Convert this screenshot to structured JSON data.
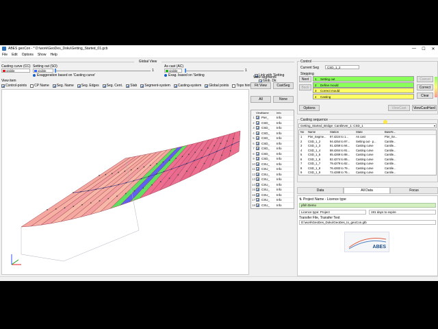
{
  "window": {
    "title": "ABES geoCon - * D:\\work\\GeoDes_Doku\\Getting_Started_01.gcb",
    "minimize": "—",
    "maximize": "☐",
    "close": "✕"
  },
  "menu": [
    "File",
    "Edit",
    "Options",
    "Show",
    "Help"
  ],
  "global_view": {
    "title": "Global View",
    "casting_curve_label": "Casting curve (CC)",
    "casting_curve_value": "visible",
    "setting_out_label": "Setting out (SO)",
    "setting_out_value": "visible",
    "exaggeration_label": "Exaggeration based on 'Casting curve'",
    "as_cast_label": "As cast (AC)",
    "as_cast_value": "visible",
    "exag_setting_label": "Exag. based on 'Setting",
    "link_label": "Link with 'Setting",
    "slider1_end": "1",
    "slider2_end": "1",
    "glob_dir_label": "Glob. Dir.",
    "view_item_title": "View item",
    "view_items": [
      "Control-points",
      "CP Name",
      "Seg. Name",
      "Seg. Edges",
      "Seg. Cent.",
      "Slab",
      "Segment-system",
      "Casting-system",
      "Global points",
      "Topo hint"
    ],
    "colors": {
      "casting_curve": "#e02020",
      "setting_out": "#3060ff",
      "as_cast": "#20b020"
    }
  },
  "view_segments": {
    "title": "View segments",
    "fit_view": "Fit View",
    "cast_seg": "CastSeg",
    "all": "All",
    "none": "None",
    "columns": [
      "View",
      "Name",
      "Info"
    ],
    "rows": [
      {
        "num": "1",
        "name": "Pier_",
        "info": "Info"
      },
      {
        "num": "2",
        "name": "CSD_",
        "info": "Info"
      },
      {
        "num": "3",
        "name": "CSD_",
        "info": "Info"
      },
      {
        "num": "4",
        "name": "CSD_",
        "info": "Info"
      },
      {
        "num": "5",
        "name": "CSD_",
        "info": "Info"
      },
      {
        "num": "6",
        "name": "CSD_",
        "info": "Info"
      },
      {
        "num": "7",
        "name": "CSD_",
        "info": "Info"
      },
      {
        "num": "8",
        "name": "CSD_",
        "info": "Info"
      },
      {
        "num": "9",
        "name": "CSD_",
        "info": "Info"
      },
      {
        "num": "10",
        "name": "CSU_",
        "info": "Info"
      },
      {
        "num": "11",
        "name": "CSU_",
        "info": "Info"
      },
      {
        "num": "12",
        "name": "CSU_",
        "info": "Info"
      },
      {
        "num": "13",
        "name": "CSU_",
        "info": "Info"
      },
      {
        "num": "14",
        "name": "CSU_",
        "info": "Info"
      },
      {
        "num": "15",
        "name": "CSU_",
        "info": "Info"
      },
      {
        "num": "16",
        "name": "CSU_",
        "info": "Info"
      },
      {
        "num": "17",
        "name": "CSU_",
        "info": "Info"
      },
      {
        "num": "18",
        "name": "CSU_",
        "info": "Info"
      }
    ]
  },
  "control": {
    "title": "Control",
    "current_seg_label": "Current Seg",
    "current_seg_value": "CSD_1_2",
    "stepping_title": "Stepping",
    "next": "Next",
    "back": "Back",
    "cancel": "Cancel",
    "correct": "Correct",
    "clear": "Clear",
    "steps": [
      {
        "num": "1",
        "label": "Setting out",
        "color": "#8aff5a"
      },
      {
        "num": "2",
        "label": "Define mould",
        "color": "#8aff5a"
      },
      {
        "num": "3",
        "label": "Correct mould",
        "color": "#ffff66"
      },
      {
        "num": "4",
        "label": "Casting",
        "color": "#ffff66"
      }
    ],
    "options": "Options",
    "view_cast": "ViewCast",
    "view_cast_hard": "ViewCastHard"
  },
  "casting_sequence": {
    "title": "Casting sequence",
    "dropdown_value": "Getting_Started_Bridge: Cantilever_1: CSD_1",
    "columns": [
      "No",
      "Name",
      "Station",
      "State",
      "BaseN..."
    ],
    "rows": [
      {
        "no": "1",
        "name": "Pier_Segme...",
        "station": "97.4224 to 1...",
        "state": "As cast",
        "base": "Pier_Se..."
      },
      {
        "no": "2",
        "name": "CSD_1_2",
        "station": "94.4254 to 97...",
        "state": "Setting out - p...",
        "base": "Cantile..."
      },
      {
        "no": "3",
        "name": "CSD_1_3",
        "station": "91.4259 to 94...",
        "state": "Casting curve",
        "base": "Cantile..."
      },
      {
        "no": "4",
        "name": "CSD_1_4",
        "station": "88.4264 to 91...",
        "state": "Casting curve",
        "base": "Cantile..."
      },
      {
        "no": "5",
        "name": "CSD_1_5",
        "station": "85.4269 to 88...",
        "state": "Casting curve",
        "base": "Cantile..."
      },
      {
        "no": "6",
        "name": "CSD_1_6",
        "station": "82.4274 to 85...",
        "state": "Casting curve",
        "base": "Cantile..."
      },
      {
        "no": "7",
        "name": "CSD_1_7",
        "station": "79.4279 to 82...",
        "state": "Casting curve",
        "base": "Cantile..."
      },
      {
        "no": "8",
        "name": "CSD_1_8",
        "station": "76.4283 to 79...",
        "state": "Casting curve",
        "base": "Cantile..."
      },
      {
        "no": "9",
        "name": "CSD_1_9",
        "station": "73.4288 to 76...",
        "state": "Casting curve",
        "base": "Cantile..."
      }
    ]
  },
  "tabs": [
    "Data",
    "All Data",
    "Focus"
  ],
  "licence": {
    "project_label": "Project Name - Licence type",
    "project_value": "pfnh Demo",
    "licence_type": "Licence type: Project",
    "expire": "191 days to expire",
    "transfer_label": "Transfer File, Transfer Text",
    "transfer_path": "D:\\work\\GeoDes_Doku\\GeoDes_to_geoCon.gtb"
  },
  "logo_text": "ABES"
}
